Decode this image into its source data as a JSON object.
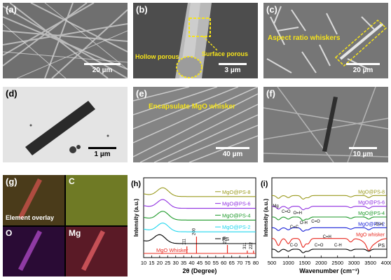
{
  "panels": {
    "a": {
      "label": "(a)",
      "scale": "20 µm"
    },
    "b": {
      "label": "(b)",
      "scale": "3 µm",
      "annotations": [
        "Hollow porous",
        "Surface porous"
      ]
    },
    "c": {
      "label": "(c)",
      "scale": "20 µm",
      "annotations": [
        "Aspect ratio whiskers"
      ]
    },
    "d": {
      "label": "(d)",
      "scale": "1 µm"
    },
    "e": {
      "label": "(e)",
      "scale": "40 µm",
      "annotations": [
        "Encapsulate MgO whisker"
      ]
    },
    "f": {
      "label": "(f)",
      "scale": "10 µm"
    },
    "g": {
      "label": "(g)",
      "overlay": "Element overlay",
      "elements": [
        "C",
        "O",
        "Mg"
      ]
    }
  },
  "colors": {
    "PS": "#000000",
    "MgO Whisker": "#e8281e",
    "MgO@PS-2": "#1a22d8",
    "MgO@PS-4": "#1e9a2a",
    "MgO@PS-6": "#8f2fe0",
    "MgO@PS-8": "#9a9a1e",
    "annotation": "#f5e31b",
    "cyan": "#1fd6ee"
  },
  "chart_data": [
    {
      "type": "line",
      "panel_label": "(h)",
      "xlabel": "2θ (Degree)",
      "ylabel": "Intensity (a.u.)",
      "xlim": [
        10,
        80
      ],
      "x_ticks": [
        10,
        15,
        20,
        25,
        30,
        35,
        40,
        45,
        50,
        55,
        60,
        65,
        70,
        75,
        80
      ],
      "series": [
        {
          "name": "MgO@PS-8",
          "color": "#9a9a1e",
          "offset": 5,
          "peak_x": 22
        },
        {
          "name": "MgO@PS-6",
          "color": "#8f2fe0",
          "offset": 4,
          "peak_x": 22
        },
        {
          "name": "MgO@PS-4",
          "color": "#1e9a2a",
          "offset": 3,
          "peak_x": 22
        },
        {
          "name": "MgO@PS-2",
          "color": "#1fd6ee",
          "offset": 2,
          "peak_x": 22
        },
        {
          "name": "PS",
          "color": "#000000",
          "offset": 1,
          "peak_x": 20
        }
      ],
      "reference": {
        "name": "MgO Whisker",
        "color": "#e8281e",
        "peaks": [
          {
            "x": 37,
            "hkl": "111"
          },
          {
            "x": 43,
            "hkl": "200"
          },
          {
            "x": 62.3,
            "hkl": "220"
          },
          {
            "x": 74.7,
            "hkl": "311"
          },
          {
            "x": 78.6,
            "hkl": "222"
          }
        ]
      }
    },
    {
      "type": "line",
      "panel_label": "(i)",
      "xlabel": "Wavenumber (cm⁻¹)",
      "ylabel": "Intensity (a.u.)",
      "xlim": [
        500,
        4000
      ],
      "x_ticks": [
        500,
        1000,
        1500,
        2000,
        2500,
        3000,
        3500,
        4000
      ],
      "series": [
        {
          "name": "MgO@PS-8",
          "color": "#9a9a1e",
          "offset": 6
        },
        {
          "name": "MgO@PS-6",
          "color": "#8f2fe0",
          "offset": 5
        },
        {
          "name": "MgO@PS-4",
          "color": "#1e9a2a",
          "offset": 4
        },
        {
          "name": "MgO@PS-2",
          "color": "#1a22d8",
          "offset": 3
        },
        {
          "name": "MgO whisker",
          "color": "#e8281e",
          "offset": 2
        },
        {
          "name": "PS",
          "color": "#000000",
          "offset": 1
        }
      ],
      "annotations": [
        "Mg",
        "C=O",
        "O=H",
        "C=C",
        "O-H",
        "C=O",
        "C=H",
        "O-H",
        "C-O",
        "C=O",
        "C-H"
      ]
    }
  ]
}
